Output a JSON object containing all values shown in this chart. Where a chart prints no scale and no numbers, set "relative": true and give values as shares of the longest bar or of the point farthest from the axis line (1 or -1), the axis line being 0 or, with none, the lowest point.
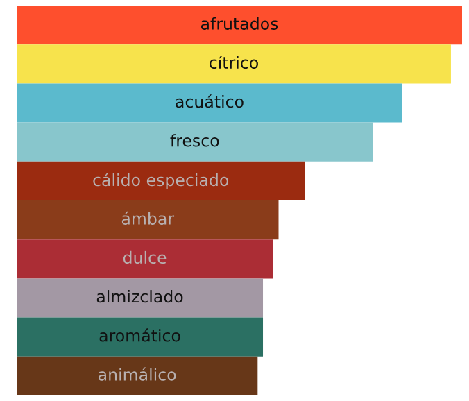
{
  "chart_data": {
    "type": "bar",
    "orientation": "horizontal",
    "relative": true,
    "categories": [
      "afrutados",
      "cítrico",
      "acuático",
      "fresco",
      "cálido especiado",
      "ámbar",
      "dulce",
      "almizclado",
      "aromático",
      "animálico"
    ],
    "values": [
      1,
      0.975,
      0.866,
      0.8,
      0.647,
      0.588,
      0.575,
      0.553,
      0.553,
      0.541
    ],
    "colors": [
      "#fe4f2d",
      "#f7e34c",
      "#5bbacd",
      "#88c6cc",
      "#9b2b10",
      "#8a3c1a",
      "#ab2d35",
      "#a398a4",
      "#2b7063",
      "#673718"
    ],
    "legend": false
  }
}
